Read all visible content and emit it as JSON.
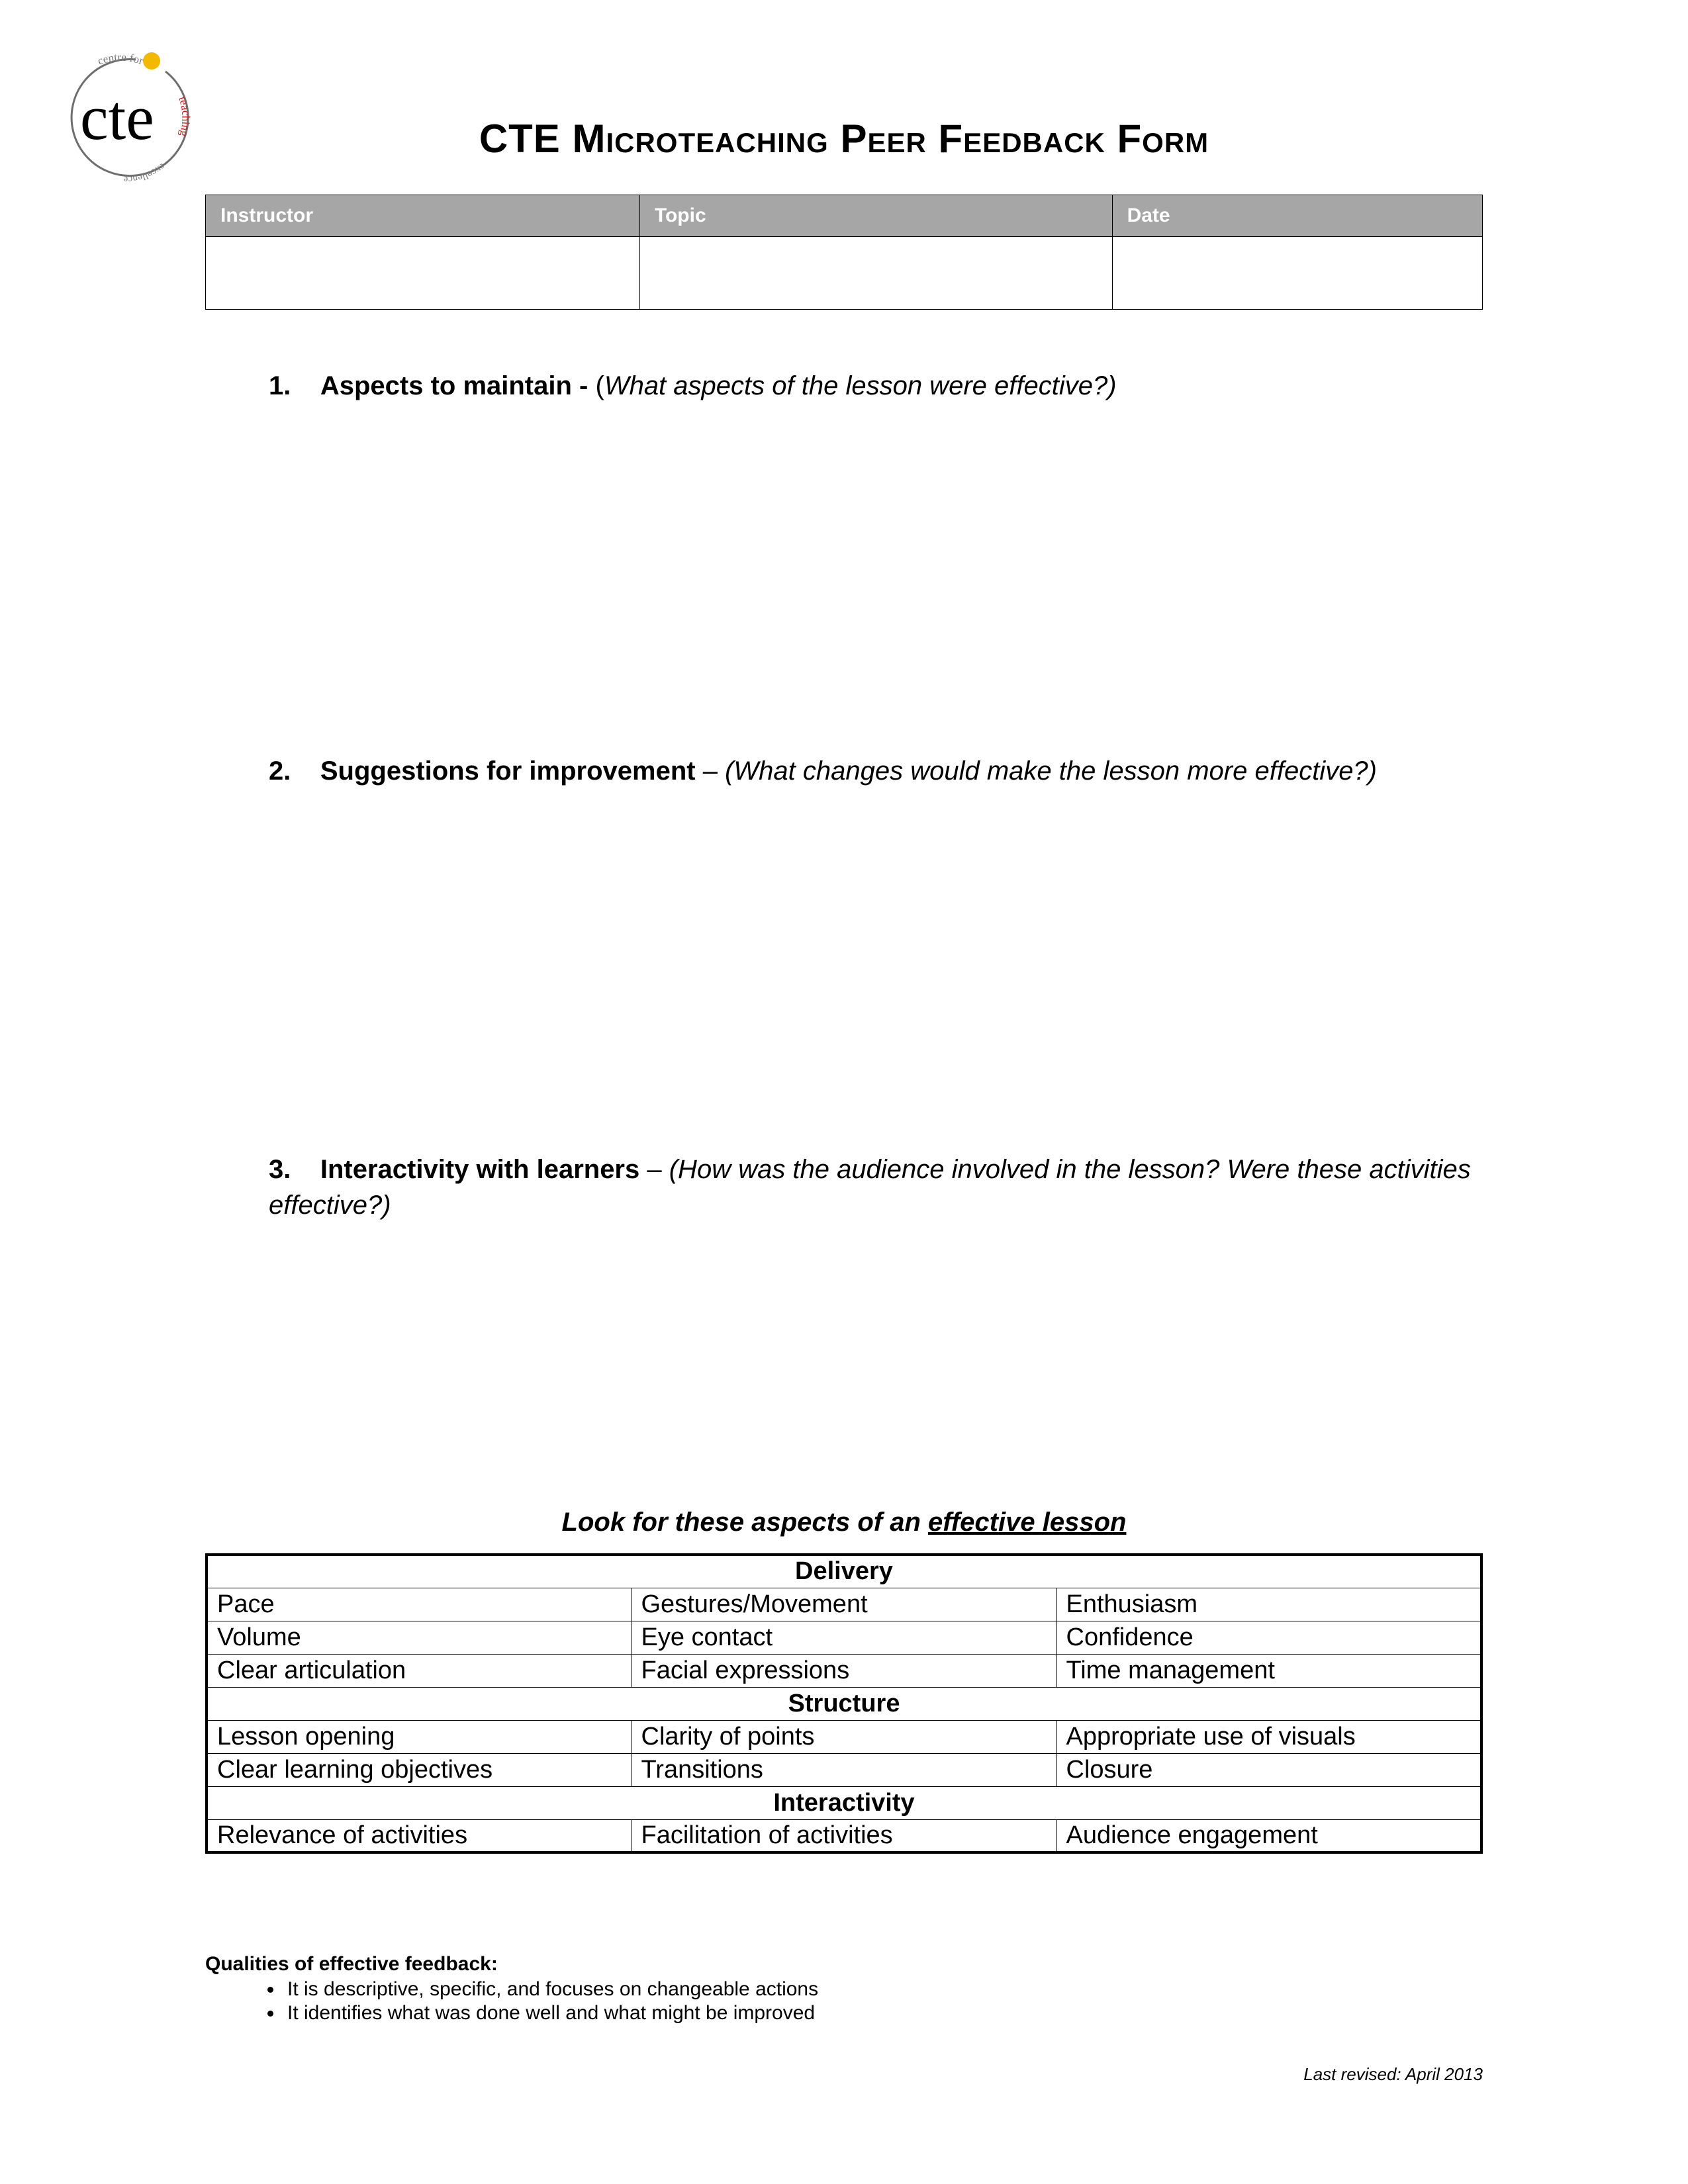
{
  "logo": {
    "top_text": "centre for",
    "right_text": "teaching",
    "sub_text": "excellence",
    "main_text": "cte",
    "ring_color": "#6e6e6e",
    "dot_color": "#f2b900",
    "highlight_color": "#d11a1a",
    "text_color": "#000000"
  },
  "title": "CTE Microteaching Peer Feedback Form",
  "header_table": {
    "columns": [
      "Instructor",
      "Topic",
      "Date"
    ],
    "values": [
      "",
      "",
      ""
    ]
  },
  "sections": [
    {
      "num": "1.",
      "label": "Aspects to maintain",
      "sep": " - ",
      "desc_prefix": "(",
      "desc": "What aspects of the lesson were effective?)"
    },
    {
      "num": "2.",
      "label": "Suggestions for improvement",
      "sep": " – ",
      "desc_prefix": "",
      "desc": "(What changes would make the lesson more effective?)"
    },
    {
      "num": "3.",
      "label": "Interactivity with learners",
      "sep": " – ",
      "desc_prefix": "",
      "desc": "(How was the audience involved in the lesson? Were these activities effective?)"
    }
  ],
  "aspects": {
    "heading_pre": "Look for these aspects of an ",
    "heading_ul": "effective lesson",
    "groups": [
      {
        "title": "Delivery",
        "rows": [
          [
            "Pace",
            "Gestures/Movement",
            "Enthusiasm"
          ],
          [
            "Volume",
            "Eye contact",
            "Confidence"
          ],
          [
            "Clear articulation",
            "Facial expressions",
            "Time management"
          ]
        ]
      },
      {
        "title": "Structure",
        "rows": [
          [
            "Lesson opening",
            "Clarity of points",
            "Appropriate use of visuals"
          ],
          [
            "Clear learning objectives",
            "Transitions",
            "Closure"
          ]
        ]
      },
      {
        "title": "Interactivity",
        "rows": [
          [
            "Relevance of activities",
            "Facilitation of activities",
            "Audience engagement"
          ]
        ]
      }
    ]
  },
  "qualities": {
    "title": "Qualities of effective feedback:",
    "items": [
      "It is descriptive, specific, and focuses on changeable actions",
      "It identifies what was done well and what might be improved"
    ]
  },
  "footer": "Last revised: April 2013"
}
